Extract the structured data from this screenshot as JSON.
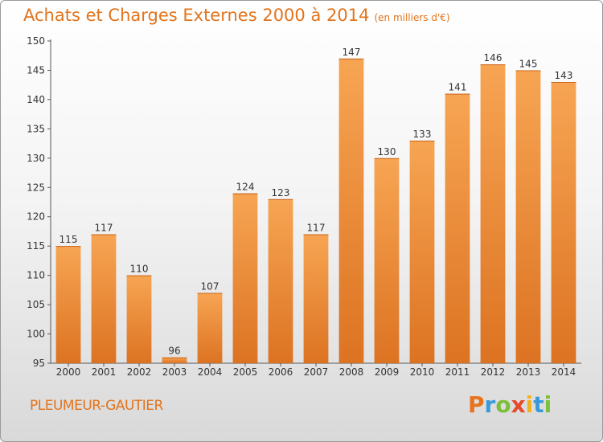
{
  "header": {
    "title": "Achats et Charges Externes 2000 à 2014",
    "unit": "(en milliers d'€)"
  },
  "commune": "PLEUMEUR-GAUTIER",
  "logo": {
    "letters": [
      "P",
      "r",
      "o",
      "x",
      "i",
      "t",
      "i"
    ],
    "colors": [
      "#e8731c",
      "#3a9ad9",
      "#7cbf3a",
      "#e54a2a",
      "#f2b21e",
      "#3a9ad9",
      "#7cbf3a"
    ]
  },
  "colors": {
    "bar_light": "#f7a553",
    "bar_dark": "#dc7322",
    "accent": "#e2741c"
  },
  "chart_data": {
    "type": "bar",
    "title": "Achats et Charges Externes 2000 à 2014",
    "xlabel": "",
    "ylabel": "",
    "categories": [
      "2000",
      "2001",
      "2002",
      "2003",
      "2004",
      "2005",
      "2006",
      "2007",
      "2008",
      "2009",
      "2010",
      "2011",
      "2012",
      "2013",
      "2014"
    ],
    "values": [
      115,
      117,
      110,
      96,
      107,
      124,
      123,
      117,
      147,
      130,
      133,
      141,
      146,
      145,
      143
    ],
    "ylim": [
      95,
      150
    ],
    "yticks": [
      95,
      100,
      105,
      110,
      115,
      120,
      125,
      130,
      135,
      140,
      145,
      150
    ],
    "grid": false,
    "legend": "none"
  }
}
